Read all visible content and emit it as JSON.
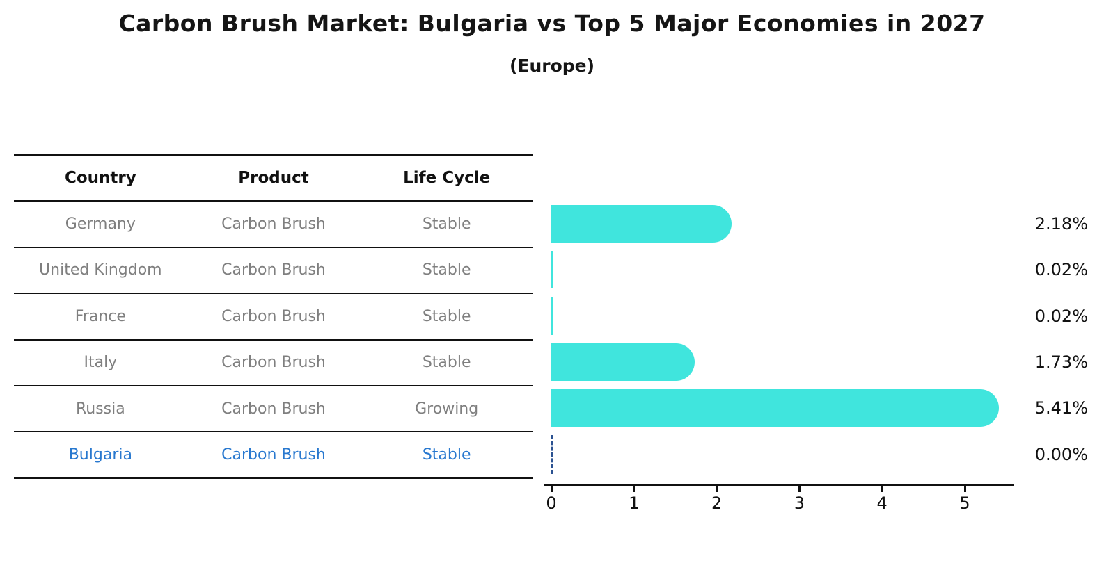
{
  "title": "Carbon Brush Market: Bulgaria vs Top 5 Major Economies in 2027",
  "subtitle": "(Europe)",
  "table": {
    "headers": [
      "Country",
      "Product",
      "Life Cycle"
    ],
    "rows": [
      {
        "country": "Germany",
        "product": "Carbon Brush",
        "life_cycle": "Stable"
      },
      {
        "country": "United Kingdom",
        "product": "Carbon Brush",
        "life_cycle": "Stable"
      },
      {
        "country": "France",
        "product": "Carbon Brush",
        "life_cycle": "Stable"
      },
      {
        "country": "Italy",
        "product": "Carbon Brush",
        "life_cycle": "Stable"
      },
      {
        "country": "Russia",
        "product": "Carbon Brush",
        "life_cycle": "Growing"
      },
      {
        "country": "Bulgaria",
        "product": "Carbon Brush",
        "life_cycle": "Stable"
      }
    ],
    "highlighted_row": "Bulgaria"
  },
  "chart_data": {
    "type": "bar",
    "orientation": "horizontal",
    "title": "Carbon Brush Market: Bulgaria vs Top 5 Major Economies in 2027",
    "subtitle": "(Europe)",
    "categories": [
      "Germany",
      "United Kingdom",
      "France",
      "Italy",
      "Russia",
      "Bulgaria"
    ],
    "values": [
      2.18,
      0.02,
      0.02,
      1.73,
      5.41,
      0.0
    ],
    "value_labels": [
      "2.18%",
      "0.02%",
      "0.02%",
      "1.73%",
      "5.41%",
      "0.00%"
    ],
    "x_ticks": [
      0,
      1,
      2,
      3,
      4,
      5
    ],
    "x_tick_labels": [
      "0",
      "1",
      "2",
      "3",
      "4",
      "5"
    ],
    "xlim": [
      0,
      5.6
    ],
    "grid": false,
    "legend": "none",
    "bar_color": "#40e5dd",
    "highlight_line_color": "#2b5291",
    "highlight_text_color": "#2878cf",
    "row_text_color": "#7f7f7f"
  }
}
